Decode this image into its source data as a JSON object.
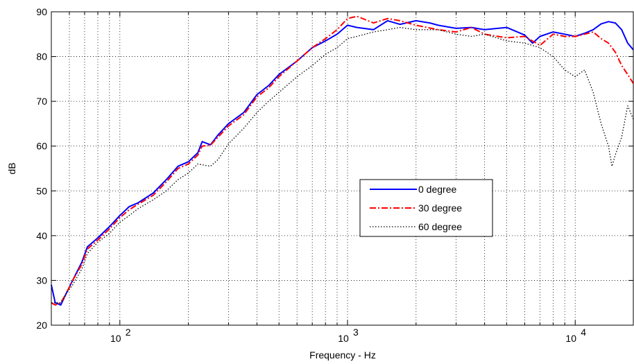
{
  "chart_data": {
    "type": "line",
    "xscale": "log",
    "xlabel": "Frequency - Hz",
    "ylabel": "dB",
    "xlim": [
      50,
      18000
    ],
    "ylim": [
      20,
      90
    ],
    "yticks": [
      20,
      30,
      40,
      50,
      60,
      70,
      80,
      90
    ],
    "xticks": [
      {
        "value": 100,
        "base": "10",
        "exp": "2"
      },
      {
        "value": 1000,
        "base": "10",
        "exp": "3"
      },
      {
        "value": 10000,
        "base": "10",
        "exp": "4"
      }
    ],
    "grid": true,
    "legend_position": "center-right",
    "series": [
      {
        "name": "0 degree",
        "color": "#0000ff",
        "style": "solid",
        "points": [
          [
            50,
            29
          ],
          [
            52,
            25
          ],
          [
            55,
            24.5
          ],
          [
            58,
            27
          ],
          [
            62,
            30
          ],
          [
            68,
            34
          ],
          [
            72,
            37.5
          ],
          [
            80,
            39.5
          ],
          [
            90,
            42
          ],
          [
            100,
            44.5
          ],
          [
            110,
            46.5
          ],
          [
            120,
            47.3
          ],
          [
            140,
            49.5
          ],
          [
            160,
            52.5
          ],
          [
            180,
            55.5
          ],
          [
            200,
            56.5
          ],
          [
            220,
            58.5
          ],
          [
            230,
            61
          ],
          [
            250,
            60.3
          ],
          [
            270,
            62.5
          ],
          [
            300,
            65
          ],
          [
            350,
            67.5
          ],
          [
            400,
            71.5
          ],
          [
            450,
            73.5
          ],
          [
            500,
            76
          ],
          [
            600,
            79
          ],
          [
            700,
            82
          ],
          [
            800,
            83.5
          ],
          [
            900,
            85
          ],
          [
            1000,
            87
          ],
          [
            1100,
            86.5
          ],
          [
            1300,
            86
          ],
          [
            1500,
            88
          ],
          [
            1700,
            87.2
          ],
          [
            2000,
            88
          ],
          [
            2300,
            87.5
          ],
          [
            2500,
            87
          ],
          [
            3000,
            86.3
          ],
          [
            3500,
            86.5
          ],
          [
            4000,
            86
          ],
          [
            5000,
            86.5
          ],
          [
            6000,
            84.8
          ],
          [
            6500,
            83
          ],
          [
            7000,
            84.5
          ],
          [
            8000,
            85.5
          ],
          [
            9000,
            85
          ],
          [
            10000,
            84.5
          ],
          [
            11000,
            85.2
          ],
          [
            12000,
            86
          ],
          [
            13000,
            87.3
          ],
          [
            14000,
            87.8
          ],
          [
            15000,
            87.5
          ],
          [
            16000,
            86
          ],
          [
            17000,
            83
          ],
          [
            18000,
            81.5
          ]
        ]
      },
      {
        "name": "30 degree",
        "color": "#ff0000",
        "style": "dashdot",
        "points": [
          [
            50,
            25
          ],
          [
            52,
            24.5
          ],
          [
            55,
            25
          ],
          [
            58,
            27
          ],
          [
            62,
            30
          ],
          [
            68,
            33.5
          ],
          [
            72,
            37
          ],
          [
            80,
            39
          ],
          [
            90,
            41.5
          ],
          [
            100,
            44
          ],
          [
            110,
            45.8
          ],
          [
            120,
            47
          ],
          [
            140,
            49
          ],
          [
            160,
            52
          ],
          [
            180,
            55
          ],
          [
            200,
            56
          ],
          [
            220,
            58
          ],
          [
            230,
            60
          ],
          [
            250,
            60.2
          ],
          [
            270,
            62
          ],
          [
            300,
            64.5
          ],
          [
            350,
            67
          ],
          [
            400,
            71
          ],
          [
            450,
            73
          ],
          [
            500,
            75.5
          ],
          [
            600,
            79
          ],
          [
            700,
            82
          ],
          [
            800,
            84
          ],
          [
            900,
            86
          ],
          [
            1000,
            88.5
          ],
          [
            1100,
            89
          ],
          [
            1300,
            87.5
          ],
          [
            1500,
            88.5
          ],
          [
            1700,
            88
          ],
          [
            2000,
            87
          ],
          [
            2500,
            86
          ],
          [
            3000,
            85.5
          ],
          [
            3500,
            86.5
          ],
          [
            4000,
            85
          ],
          [
            5000,
            84.2
          ],
          [
            6000,
            84.5
          ],
          [
            7000,
            82.5
          ],
          [
            8000,
            85
          ],
          [
            9000,
            84.5
          ],
          [
            10000,
            84.5
          ],
          [
            11000,
            85
          ],
          [
            12000,
            85.5
          ],
          [
            13000,
            84
          ],
          [
            14000,
            83
          ],
          [
            15000,
            81
          ],
          [
            16000,
            78
          ],
          [
            17000,
            76
          ],
          [
            18000,
            74
          ]
        ]
      },
      {
        "name": "60 degree",
        "color": "#000000",
        "style": "dotted",
        "points": [
          [
            50,
            25
          ],
          [
            55,
            25
          ],
          [
            58,
            27
          ],
          [
            62,
            29
          ],
          [
            68,
            32.5
          ],
          [
            72,
            36
          ],
          [
            80,
            38.5
          ],
          [
            90,
            40.5
          ],
          [
            100,
            43
          ],
          [
            110,
            44.5
          ],
          [
            120,
            46
          ],
          [
            140,
            48
          ],
          [
            160,
            50
          ],
          [
            180,
            52.5
          ],
          [
            200,
            54
          ],
          [
            220,
            56
          ],
          [
            250,
            55.5
          ],
          [
            270,
            57
          ],
          [
            300,
            60.5
          ],
          [
            350,
            64
          ],
          [
            400,
            67.5
          ],
          [
            450,
            70
          ],
          [
            500,
            72
          ],
          [
            600,
            75.5
          ],
          [
            700,
            78
          ],
          [
            800,
            80.5
          ],
          [
            900,
            82
          ],
          [
            1000,
            84
          ],
          [
            1100,
            84.5
          ],
          [
            1300,
            85.5
          ],
          [
            1500,
            86
          ],
          [
            1700,
            86.5
          ],
          [
            2000,
            86
          ],
          [
            2500,
            86
          ],
          [
            3000,
            85
          ],
          [
            3500,
            84.5
          ],
          [
            4000,
            85
          ],
          [
            5000,
            83.5
          ],
          [
            6000,
            83
          ],
          [
            7000,
            82
          ],
          [
            8000,
            80
          ],
          [
            9000,
            77
          ],
          [
            10000,
            75.5
          ],
          [
            11000,
            77
          ],
          [
            12000,
            72
          ],
          [
            13000,
            65
          ],
          [
            14000,
            60
          ],
          [
            14500,
            55.5
          ],
          [
            15000,
            58
          ],
          [
            16000,
            62
          ],
          [
            17000,
            69
          ],
          [
            18000,
            66
          ]
        ]
      }
    ]
  }
}
